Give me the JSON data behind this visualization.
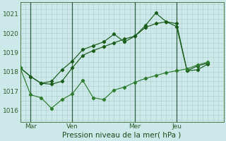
{
  "background_color": "#cce8e8",
  "grid_color": "#aacccc",
  "line_color_dark": "#1a5c1a",
  "line_color_light": "#2e7d2e",
  "title": "Pression niveau de la mer( hPa )",
  "xlim": [
    0.0,
    9.5
  ],
  "ylim": [
    1015.4,
    1021.6
  ],
  "yticks": [
    1016,
    1017,
    1018,
    1019,
    1020,
    1021
  ],
  "xtick_positions": [
    0.5,
    2.5,
    5.5,
    7.5
  ],
  "xtick_labels": [
    "Mar",
    "Ven",
    "Mer",
    "Jeu"
  ],
  "vline_positions": [
    0.5,
    2.5,
    5.5,
    7.5
  ],
  "line1_x": [
    0.0,
    0.5,
    1.0,
    1.5,
    2.0,
    2.5,
    3.0,
    3.5,
    4.0,
    4.5,
    5.0,
    5.5,
    6.0,
    6.5,
    7.0,
    7.5,
    8.0,
    8.5,
    9.0
  ],
  "line1_y": [
    1018.2,
    1017.75,
    1017.4,
    1017.35,
    1017.5,
    1018.2,
    1018.85,
    1019.1,
    1019.3,
    1019.5,
    1019.7,
    1019.85,
    1020.3,
    1020.5,
    1020.6,
    1020.5,
    1018.05,
    1018.3,
    1018.45
  ],
  "line2_x": [
    0.0,
    0.5,
    1.0,
    1.5,
    2.0,
    2.5,
    3.0,
    3.5,
    4.0,
    4.5,
    5.0,
    5.5,
    6.0,
    6.5,
    7.0,
    7.5,
    8.0,
    8.5,
    9.0
  ],
  "line2_y": [
    1018.2,
    1017.75,
    1017.4,
    1017.5,
    1018.1,
    1018.55,
    1019.15,
    1019.35,
    1019.55,
    1019.95,
    1019.55,
    1019.85,
    1020.4,
    1021.05,
    1020.6,
    1020.35,
    1018.05,
    1018.1,
    1018.4
  ],
  "line3_x": [
    0.0,
    0.5,
    1.0,
    1.5,
    2.0,
    2.5,
    3.0,
    3.5,
    4.0,
    4.5,
    5.0,
    5.5,
    6.0,
    6.5,
    7.0,
    7.5,
    8.0,
    8.5,
    9.0
  ],
  "line3_y": [
    1018.2,
    1016.8,
    1016.65,
    1016.1,
    1016.55,
    1016.85,
    1017.55,
    1016.65,
    1016.55,
    1017.05,
    1017.2,
    1017.45,
    1017.65,
    1017.8,
    1017.95,
    1018.05,
    1018.15,
    1018.35,
    1018.5
  ]
}
